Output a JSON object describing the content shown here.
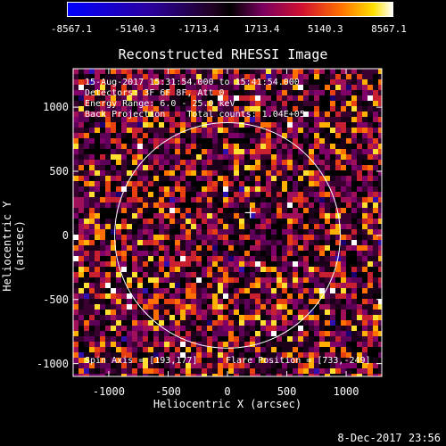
{
  "colorbar": {
    "ticks": [
      "-8567.1",
      "-5140.3",
      "-1713.4",
      "1713.4",
      "5140.3",
      "8567.1"
    ],
    "min": -8567.1,
    "max": 8567.1
  },
  "chart_data": {
    "type": "heatmap",
    "title": "Reconstructed RHESSI Image",
    "xlabel": "Heliocentric X (arcsec)",
    "ylabel": "Heliocentric Y (arcsec)",
    "xlim": [
      -1300,
      1300
    ],
    "ylim": [
      -1100,
      1300
    ],
    "xticks": [
      "-1000",
      "-500",
      "0",
      "500",
      "1000"
    ],
    "xtick_values": [
      -1000,
      -500,
      0,
      500,
      1000
    ],
    "yticks": [
      "1000",
      "500",
      "0",
      "-500",
      "-1000"
    ],
    "ytick_values": [
      1000,
      500,
      0,
      -500,
      -1000
    ],
    "solar_limb_radius": 950,
    "crosshair": [
      193,
      177
    ],
    "colormap": "blue-black-red-yellow-white",
    "annotations": {
      "time_range": "15-Aug-2017 15:31:54.000 to 15:41:54.000",
      "detectors": "Detectors: 3F 6F 8F, Att 0",
      "energy": "Energy Range: 6.0 - 25.0 keV",
      "method": "Back Projection    Total counts: 1.04E+05",
      "spin_axis": "Spin Axis = [193,177]",
      "flare_position": "Flare Position = [733,-249]"
    }
  },
  "timestamp": "8-Dec-2017 23:56"
}
